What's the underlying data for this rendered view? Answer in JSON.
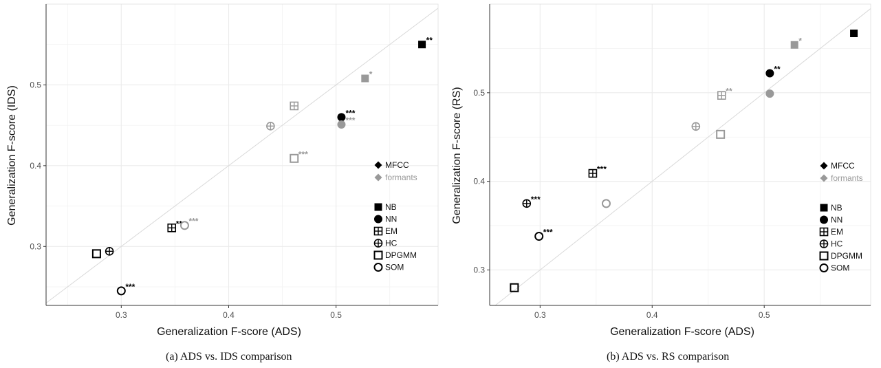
{
  "chart_data": [
    {
      "type": "scatter",
      "caption": "(a)  ADS vs. IDS comparison",
      "xlabel": "Generalization F-score (ADS)",
      "ylabel": "Generalization F-score (IDS)",
      "xlim": [
        0.23,
        0.595
      ],
      "ylim": [
        0.227,
        0.6
      ],
      "xticks": [
        0.3,
        0.4,
        0.5
      ],
      "yticks": [
        0.3,
        0.4,
        0.5
      ],
      "grid": true,
      "diagonal": true,
      "legend_position": "right",
      "colors": {
        "MFCC": "#000000",
        "formants": "#999999"
      },
      "series": [
        {
          "name": "MFCC",
          "points": [
            {
              "model": "NB",
              "x": 0.58,
              "y": 0.55,
              "sig": "**"
            },
            {
              "model": "NN",
              "x": 0.505,
              "y": 0.46,
              "sig": "***"
            },
            {
              "model": "EM",
              "x": 0.347,
              "y": 0.323,
              "sig": "**"
            },
            {
              "model": "HC",
              "x": 0.289,
              "y": 0.294,
              "sig": ""
            },
            {
              "model": "DPGMM",
              "x": 0.277,
              "y": 0.291,
              "sig": ""
            },
            {
              "model": "SOM",
              "x": 0.3,
              "y": 0.245,
              "sig": "***"
            }
          ]
        },
        {
          "name": "formants",
          "points": [
            {
              "model": "NB",
              "x": 0.527,
              "y": 0.508,
              "sig": "*"
            },
            {
              "model": "NN",
              "x": 0.505,
              "y": 0.451,
              "sig": "***"
            },
            {
              "model": "EM",
              "x": 0.461,
              "y": 0.474,
              "sig": ""
            },
            {
              "model": "HC",
              "x": 0.439,
              "y": 0.449,
              "sig": ""
            },
            {
              "model": "DPGMM",
              "x": 0.461,
              "y": 0.409,
              "sig": "***"
            },
            {
              "model": "SOM",
              "x": 0.359,
              "y": 0.326,
              "sig": "***"
            }
          ]
        }
      ]
    },
    {
      "type": "scatter",
      "caption": "(b)  ADS vs. RS comparison",
      "xlabel": "Generalization F-score (ADS)",
      "ylabel": "Generalization F-score (RS)",
      "xlim": [
        0.255,
        0.595
      ],
      "ylim": [
        0.26,
        0.6
      ],
      "xticks": [
        0.3,
        0.4,
        0.5
      ],
      "yticks": [
        0.3,
        0.4,
        0.5
      ],
      "grid": true,
      "diagonal": true,
      "legend_position": "right",
      "colors": {
        "MFCC": "#000000",
        "formants": "#999999"
      },
      "series": [
        {
          "name": "MFCC",
          "points": [
            {
              "model": "NB",
              "x": 0.58,
              "y": 0.567,
              "sig": ""
            },
            {
              "model": "NN",
              "x": 0.505,
              "y": 0.522,
              "sig": "**"
            },
            {
              "model": "EM",
              "x": 0.347,
              "y": 0.409,
              "sig": "***"
            },
            {
              "model": "HC",
              "x": 0.288,
              "y": 0.375,
              "sig": "***"
            },
            {
              "model": "DPGMM",
              "x": 0.277,
              "y": 0.28,
              "sig": ""
            },
            {
              "model": "SOM",
              "x": 0.299,
              "y": 0.338,
              "sig": "***"
            }
          ]
        },
        {
          "name": "formants",
          "points": [
            {
              "model": "NB",
              "x": 0.527,
              "y": 0.554,
              "sig": "*"
            },
            {
              "model": "NN",
              "x": 0.505,
              "y": 0.499,
              "sig": ""
            },
            {
              "model": "EM",
              "x": 0.462,
              "y": 0.497,
              "sig": "**"
            },
            {
              "model": "HC",
              "x": 0.439,
              "y": 0.462,
              "sig": ""
            },
            {
              "model": "DPGMM",
              "x": 0.461,
              "y": 0.453,
              "sig": ""
            },
            {
              "model": "SOM",
              "x": 0.359,
              "y": 0.375,
              "sig": ""
            }
          ]
        }
      ]
    }
  ],
  "legend": {
    "features": [
      {
        "label": "MFCC",
        "color": "#000000"
      },
      {
        "label": "formants",
        "color": "#999999"
      }
    ],
    "models": [
      {
        "label": "NB",
        "shape": "filled-square"
      },
      {
        "label": "NN",
        "shape": "filled-circle"
      },
      {
        "label": "EM",
        "shape": "square-plus"
      },
      {
        "label": "HC",
        "shape": "circle-plus"
      },
      {
        "label": "DPGMM",
        "shape": "open-square"
      },
      {
        "label": "SOM",
        "shape": "open-circle"
      }
    ]
  }
}
